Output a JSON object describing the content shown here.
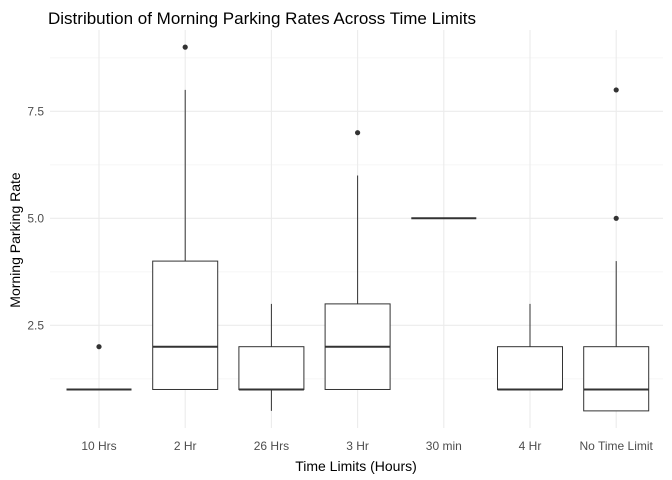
{
  "chart_data": {
    "type": "boxplot",
    "title": "Distribution of Morning Parking Rates Across Time Limits",
    "xlabel": "Time Limits (Hours)",
    "ylabel": "Morning Parking Rate",
    "categories": [
      "10 Hrs",
      "2 Hr",
      "26 Hrs",
      "3 Hr",
      "30 min",
      "4 Hr",
      "No Time Limit"
    ],
    "y_ticks": [
      2.5,
      5.0,
      7.5
    ],
    "y_tick_labels": [
      "2.5",
      "5.0",
      "7.5"
    ],
    "ylim": [
      0.1,
      9.4
    ],
    "grid": true,
    "legend": "none",
    "boxes": [
      {
        "category": "10 Hrs",
        "min": 1,
        "q1": 1,
        "median": 1,
        "q3": 1,
        "max": 1,
        "outliers": [
          2
        ]
      },
      {
        "category": "2 Hr",
        "min": 1,
        "q1": 1,
        "median": 2,
        "q3": 4,
        "max": 8,
        "outliers": [
          9
        ]
      },
      {
        "category": "26 Hrs",
        "min": 0.5,
        "q1": 1,
        "median": 1,
        "q3": 2,
        "max": 3,
        "outliers": []
      },
      {
        "category": "3 Hr",
        "min": 1,
        "q1": 1,
        "median": 2,
        "q3": 3,
        "max": 6,
        "outliers": [
          7
        ]
      },
      {
        "category": "30 min",
        "min": 5,
        "q1": 5,
        "median": 5,
        "q3": 5,
        "max": 5,
        "outliers": []
      },
      {
        "category": "4 Hr",
        "min": 1,
        "q1": 1,
        "median": 1,
        "q3": 2,
        "max": 3,
        "outliers": []
      },
      {
        "category": "No Time Limit",
        "min": 0.5,
        "q1": 0.5,
        "median": 1,
        "q3": 2,
        "max": 4,
        "outliers": [
          5,
          8
        ]
      }
    ],
    "colors": {
      "box_stroke": "#333333",
      "box_fill": "#ffffff",
      "grid_major": "#ebebeb",
      "grid_minor": "#f5f5f5",
      "outlier": "#333333"
    }
  }
}
